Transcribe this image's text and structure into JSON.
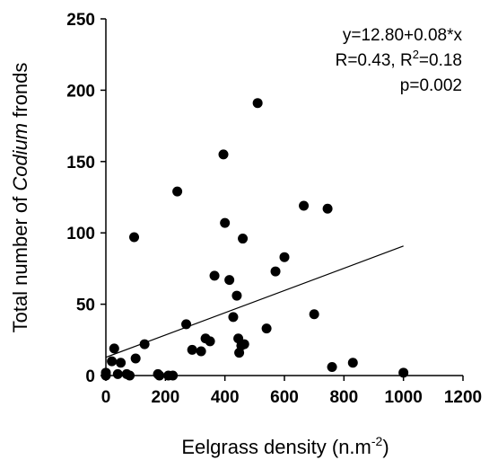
{
  "chart_data": {
    "type": "scatter",
    "xlabel_text": "Eelgrass density (n.m",
    "xlabel_sup": "-2",
    "xlabel_close": ")",
    "ylabel_pre": "Total number of ",
    "ylabel_italic": "Codium",
    "ylabel_post": " fronds",
    "xlim": [
      0,
      1200
    ],
    "ylim": [
      0,
      250
    ],
    "xticks": [
      0,
      200,
      400,
      600,
      800,
      1000,
      1200
    ],
    "yticks": [
      0,
      50,
      100,
      150,
      200,
      250
    ],
    "xtick_labels": [
      "0",
      "200",
      "400",
      "600",
      "800",
      "1000",
      "1200"
    ],
    "ytick_labels": [
      "0",
      "50",
      "100",
      "150",
      "200",
      "250"
    ],
    "annotation": {
      "equation": "y=12.80+0.08*x",
      "r_text": "R=0.43, R",
      "r_sup": "2",
      "r2_text": "=0.18",
      "p_text": "p=0.002"
    },
    "regression": {
      "intercept": 12.8,
      "slope": 0.078,
      "x_range": [
        0,
        1000
      ]
    },
    "points": [
      {
        "x": 0,
        "y": 2
      },
      {
        "x": 0,
        "y": 0
      },
      {
        "x": 20,
        "y": 10
      },
      {
        "x": 28,
        "y": 19
      },
      {
        "x": 40,
        "y": 1
      },
      {
        "x": 50,
        "y": 9
      },
      {
        "x": 70,
        "y": 1
      },
      {
        "x": 80,
        "y": 0
      },
      {
        "x": 95,
        "y": 97
      },
      {
        "x": 100,
        "y": 12
      },
      {
        "x": 130,
        "y": 22
      },
      {
        "x": 175,
        "y": 1
      },
      {
        "x": 180,
        "y": 0
      },
      {
        "x": 210,
        "y": 0
      },
      {
        "x": 225,
        "y": 0
      },
      {
        "x": 240,
        "y": 129
      },
      {
        "x": 270,
        "y": 36
      },
      {
        "x": 290,
        "y": 18
      },
      {
        "x": 320,
        "y": 17
      },
      {
        "x": 335,
        "y": 26
      },
      {
        "x": 350,
        "y": 24
      },
      {
        "x": 365,
        "y": 70
      },
      {
        "x": 395,
        "y": 155
      },
      {
        "x": 400,
        "y": 107
      },
      {
        "x": 415,
        "y": 67
      },
      {
        "x": 428,
        "y": 41
      },
      {
        "x": 440,
        "y": 56
      },
      {
        "x": 445,
        "y": 26
      },
      {
        "x": 448,
        "y": 16
      },
      {
        "x": 455,
        "y": 21
      },
      {
        "x": 460,
        "y": 96
      },
      {
        "x": 465,
        "y": 22
      },
      {
        "x": 510,
        "y": 191
      },
      {
        "x": 540,
        "y": 33
      },
      {
        "x": 570,
        "y": 73
      },
      {
        "x": 600,
        "y": 83
      },
      {
        "x": 665,
        "y": 119
      },
      {
        "x": 700,
        "y": 43
      },
      {
        "x": 745,
        "y": 117
      },
      {
        "x": 760,
        "y": 6
      },
      {
        "x": 830,
        "y": 9
      },
      {
        "x": 1000,
        "y": 2
      }
    ]
  }
}
